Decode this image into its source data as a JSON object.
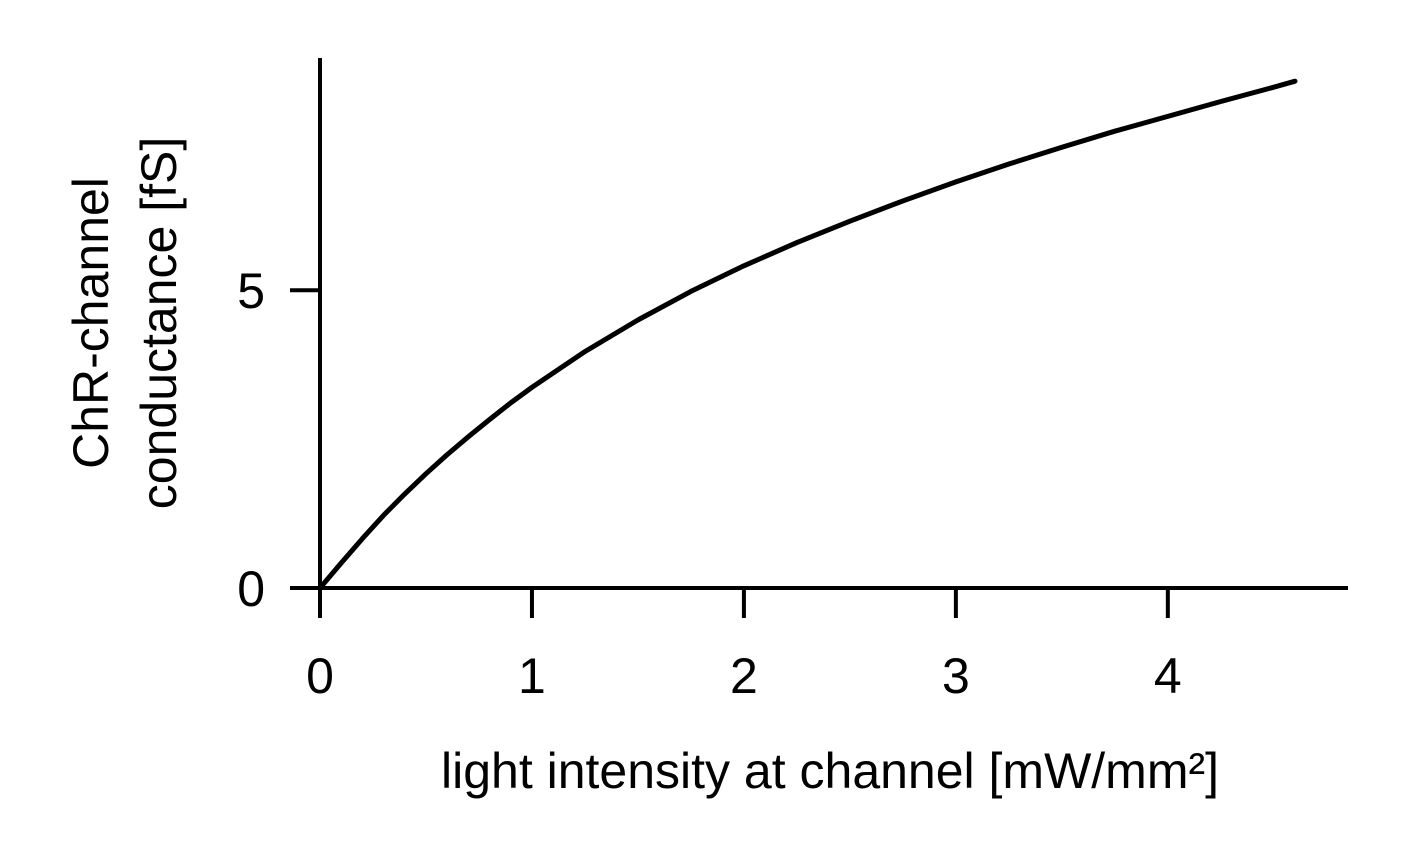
{
  "chart_data": {
    "type": "line",
    "title": "",
    "xlabel": "light intensity at channel [mW/mm²]",
    "ylabel_lines": [
      "ChR-channel",
      "conductance [fS]"
    ],
    "xlim": [
      0,
      4.85
    ],
    "ylim": [
      0,
      8.9
    ],
    "xticks": [
      0,
      1,
      2,
      3,
      4
    ],
    "yticks": [
      0,
      5
    ],
    "grid": false,
    "legend": "none",
    "line_color": "#000000",
    "series": [
      {
        "x": [
          0,
          0.1,
          0.2,
          0.3,
          0.4,
          0.5,
          0.6,
          0.7,
          0.8,
          0.9,
          1.0,
          1.25,
          1.5,
          1.75,
          2.0,
          2.25,
          2.5,
          2.75,
          3.0,
          3.25,
          3.5,
          3.75,
          4.0,
          4.25,
          4.5,
          4.6
        ],
        "y": [
          0,
          0.42,
          0.83,
          1.22,
          1.58,
          1.92,
          2.24,
          2.54,
          2.83,
          3.11,
          3.37,
          3.97,
          4.5,
          4.98,
          5.41,
          5.8,
          6.16,
          6.5,
          6.82,
          7.12,
          7.4,
          7.67,
          7.92,
          8.17,
          8.41,
          8.51
        ]
      }
    ]
  }
}
